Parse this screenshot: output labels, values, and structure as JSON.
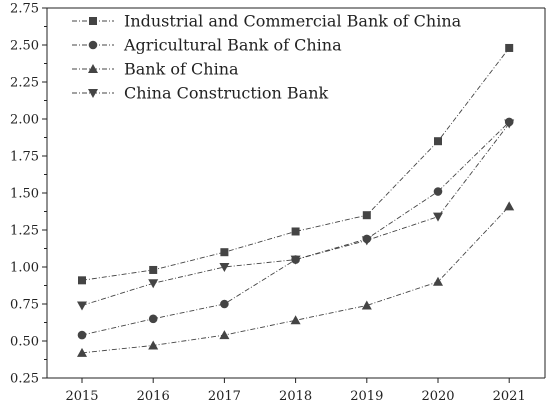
{
  "chart_data": {
    "type": "line",
    "title": "",
    "xlabel": "",
    "ylabel": "",
    "x": [
      "2015",
      "2016",
      "2017",
      "2018",
      "2019",
      "2020",
      "2021"
    ],
    "ylim": [
      0.25,
      2.75
    ],
    "yticks": [
      "0.25",
      "0.50",
      "0.75",
      "1.00",
      "1.25",
      "1.50",
      "1.75",
      "2.00",
      "2.25",
      "2.50",
      "2.75"
    ],
    "grid": false,
    "legend": "top-left",
    "line_color": "#444444",
    "series": [
      {
        "name": "Industrial and Commercial Bank of China",
        "marker": "square",
        "values": [
          0.91,
          0.98,
          1.1,
          1.24,
          1.35,
          1.85,
          2.48
        ]
      },
      {
        "name": "Agricultural Bank of China",
        "marker": "circle",
        "values": [
          0.54,
          0.65,
          0.75,
          1.05,
          1.19,
          1.51,
          1.98
        ]
      },
      {
        "name": "Bank of China",
        "marker": "triangle-up",
        "values": [
          0.42,
          0.47,
          0.54,
          0.64,
          0.74,
          0.9,
          1.41
        ]
      },
      {
        "name": "China Construction Bank",
        "marker": "triangle-down",
        "values": [
          0.74,
          0.89,
          1.0,
          1.05,
          1.18,
          1.34,
          1.97
        ]
      }
    ]
  }
}
